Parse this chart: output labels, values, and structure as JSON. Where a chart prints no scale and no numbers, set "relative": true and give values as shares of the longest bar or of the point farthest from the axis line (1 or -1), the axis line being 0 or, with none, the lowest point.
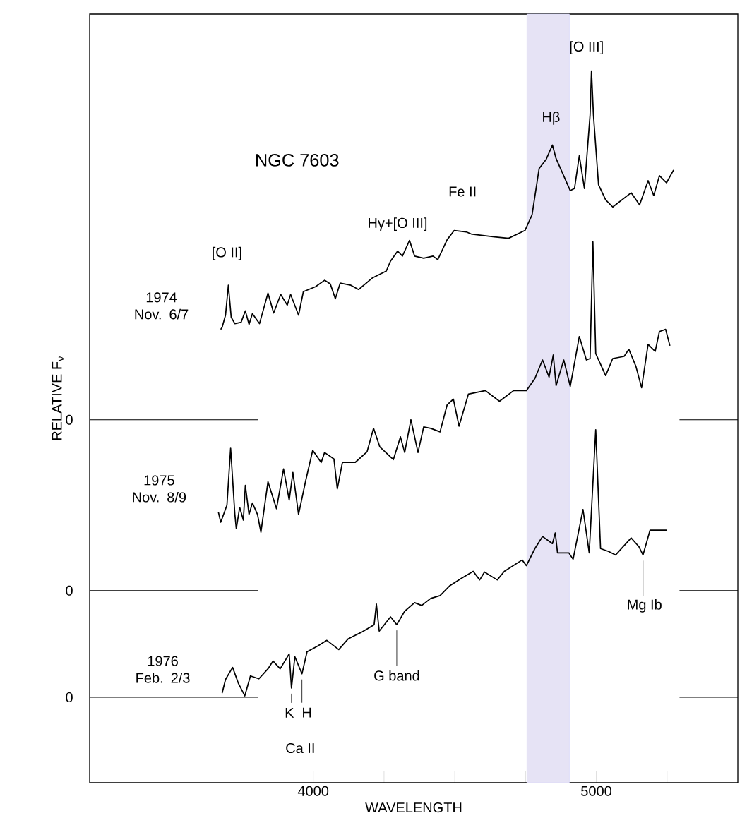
{
  "chart_data": {
    "type": "line",
    "relative": true,
    "title": "NGC 7603",
    "xlabel": "WAVELENGTH",
    "ylabel": "RELATIVE F$_{ν}$",
    "xlim": [
      3210,
      5500
    ],
    "xticks": [
      4000,
      {
        "value": 4250,
        "label": null
      },
      {
        "value": 4500,
        "label": null
      },
      {
        "value": 4750,
        "label": null
      },
      5000,
      {
        "value": 5250,
        "label": null
      }
    ],
    "bands": [
      {
        "axis": "x",
        "from": 4755,
        "to": 4905,
        "color": "#e6e3f5"
      }
    ],
    "ref_lines": [
      {
        "axis": "y",
        "value": 0.51,
        "color": "#000000"
      },
      {
        "axis": "y",
        "value": 0.27,
        "color": "#000000"
      },
      {
        "axis": "y",
        "value": 0.12,
        "color": "#000000"
      }
    ],
    "series": [
      {
        "name": "1974 Nov. 6/7",
        "color": "#000000",
        "x": [
          3673,
          3678,
          3690,
          3700,
          3710,
          3723,
          3745,
          3760,
          3773,
          3785,
          3810,
          3840,
          3860,
          3885,
          3908,
          3920,
          3948,
          3965,
          4008,
          4040,
          4060,
          4078,
          4095,
          4133,
          4160,
          4208,
          4258,
          4273,
          4298,
          4315,
          4340,
          4358,
          4390,
          4423,
          4440,
          4473,
          4498,
          4540,
          4558,
          4640,
          4690,
          4748,
          4773,
          4798,
          4823,
          4845,
          4858,
          4908,
          4923,
          4940,
          4958,
          4978,
          4983,
          4990,
          5008,
          5033,
          5058,
          5123,
          5153,
          5183,
          5203,
          5223,
          5248,
          5273
        ],
        "values": [
          0.637,
          0.64,
          0.657,
          0.699,
          0.654,
          0.645,
          0.647,
          0.663,
          0.644,
          0.659,
          0.645,
          0.688,
          0.66,
          0.686,
          0.671,
          0.686,
          0.657,
          0.69,
          0.697,
          0.706,
          0.701,
          0.68,
          0.702,
          0.699,
          0.693,
          0.709,
          0.719,
          0.733,
          0.747,
          0.74,
          0.762,
          0.74,
          0.737,
          0.74,
          0.735,
          0.763,
          0.776,
          0.774,
          0.771,
          0.767,
          0.765,
          0.776,
          0.798,
          0.863,
          0.876,
          0.896,
          0.877,
          0.832,
          0.835,
          0.881,
          0.835,
          0.938,
          1.0,
          0.938,
          0.84,
          0.819,
          0.809,
          0.829,
          0.812,
          0.846,
          0.825,
          0.853,
          0.843,
          0.861
        ]
      },
      {
        "name": "1975 Nov. 8/9",
        "color": "#000000",
        "x": [
          3665,
          3673,
          3695,
          3708,
          3723,
          3728,
          3740,
          3753,
          3760,
          3773,
          3785,
          3803,
          3815,
          3840,
          3870,
          3895,
          3915,
          3928,
          3948,
          3973,
          3998,
          4028,
          4040,
          4073,
          4085,
          4103,
          4148,
          4190,
          4213,
          4235,
          4283,
          4308,
          4323,
          4345,
          4370,
          4390,
          4415,
          4448,
          4473,
          4495,
          4515,
          4548,
          4608,
          4658,
          4708,
          4753,
          4783,
          4810,
          4833,
          4848,
          4858,
          4885,
          4908,
          4940,
          4965,
          4978,
          4988,
          4998,
          5033,
          5058,
          5098,
          5115,
          5140,
          5160,
          5183,
          5208,
          5223,
          5245,
          5260
        ],
        "values": [
          0.38,
          0.366,
          0.39,
          0.47,
          0.377,
          0.357,
          0.387,
          0.369,
          0.418,
          0.377,
          0.393,
          0.377,
          0.352,
          0.423,
          0.385,
          0.441,
          0.397,
          0.436,
          0.377,
          0.424,
          0.467,
          0.45,
          0.464,
          0.455,
          0.413,
          0.45,
          0.45,
          0.465,
          0.498,
          0.472,
          0.454,
          0.486,
          0.464,
          0.51,
          0.464,
          0.5,
          0.498,
          0.493,
          0.531,
          0.539,
          0.501,
          0.546,
          0.551,
          0.536,
          0.551,
          0.551,
          0.568,
          0.594,
          0.57,
          0.601,
          0.558,
          0.594,
          0.557,
          0.627,
          0.594,
          0.596,
          0.76,
          0.603,
          0.572,
          0.596,
          0.599,
          0.609,
          0.585,
          0.555,
          0.616,
          0.606,
          0.634,
          0.637,
          0.614
        ]
      },
      {
        "name": "1976 Feb. 2/3",
        "color": "#000000",
        "x": [
          3678,
          3690,
          3715,
          3735,
          3758,
          3778,
          3808,
          3840,
          3858,
          3883,
          3915,
          3923,
          3935,
          3960,
          3978,
          4015,
          4048,
          4090,
          4123,
          4173,
          4215,
          4223,
          4233,
          4273,
          4295,
          4323,
          4358,
          4383,
          4415,
          4448,
          4483,
          4523,
          4565,
          4588,
          4605,
          4650,
          4675,
          4738,
          4753,
          4783,
          4810,
          4845,
          4855,
          4863,
          4903,
          4918,
          4953,
          4975,
          4998,
          5015,
          5043,
          5068,
          5123,
          5150,
          5165,
          5190,
          5248
        ],
        "values": [
          0.126,
          0.145,
          0.162,
          0.14,
          0.122,
          0.15,
          0.146,
          0.16,
          0.171,
          0.16,
          0.181,
          0.133,
          0.177,
          0.153,
          0.184,
          0.192,
          0.2,
          0.187,
          0.202,
          0.212,
          0.222,
          0.251,
          0.213,
          0.233,
          0.222,
          0.241,
          0.253,
          0.249,
          0.259,
          0.263,
          0.277,
          0.287,
          0.297,
          0.285,
          0.296,
          0.285,
          0.297,
          0.313,
          0.305,
          0.329,
          0.346,
          0.336,
          0.351,
          0.323,
          0.323,
          0.314,
          0.384,
          0.323,
          0.496,
          0.329,
          0.325,
          0.32,
          0.344,
          0.332,
          0.32,
          0.355,
          0.355
        ]
      }
    ],
    "annotations": [
      {
        "text": "[O II]",
        "x": 3700,
        "y": 0.699
      },
      {
        "text": "Hγ+[O III]",
        "x": 4340,
        "y": 0.762
      },
      {
        "text": "Fe II",
        "x": 4540,
        "y": 0.774
      },
      {
        "text": "Hβ",
        "x": 4845,
        "y": 0.896
      },
      {
        "text": "[O III]",
        "x": 4983,
        "y": 1.0
      },
      {
        "text": "G band",
        "x": 4295,
        "y": 0.222
      },
      {
        "text": "K",
        "x": 3923,
        "y": 0.133
      },
      {
        "text": "H",
        "x": 3960,
        "y": 0.153
      },
      "Ca II",
      {
        "text": "Mg Ib",
        "x": 5165,
        "y": 0.32
      },
      {
        "text": "0",
        "x": 3210,
        "y": 0.51
      },
      {
        "text": "0",
        "x": 3210,
        "y": 0.27
      },
      {
        "text": "0",
        "x": 3210,
        "y": 0.12
      }
    ]
  }
}
